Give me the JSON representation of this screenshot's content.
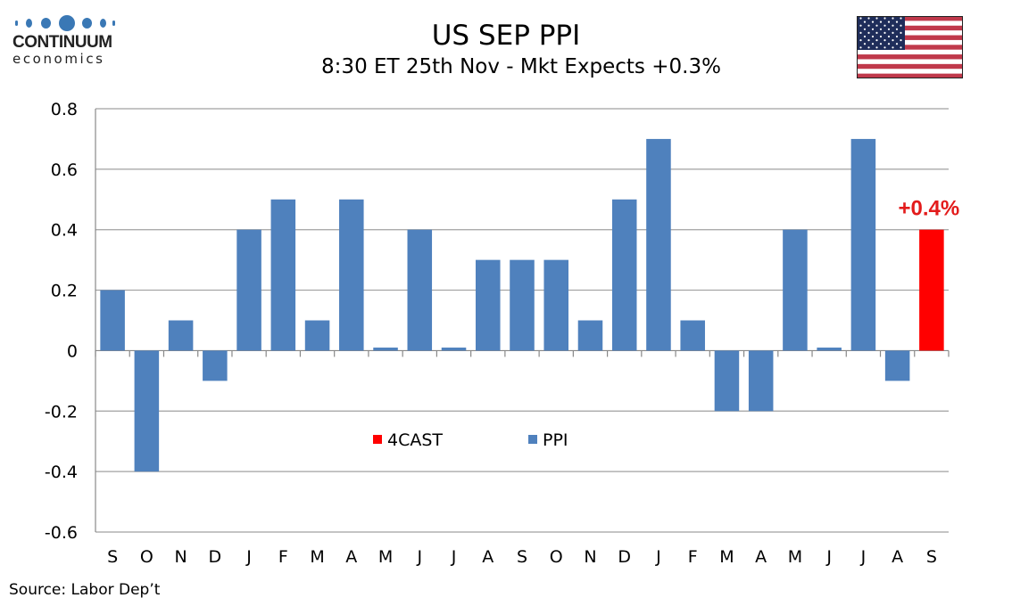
{
  "logo": {
    "name": "CONTINUUM",
    "sub": "economics"
  },
  "header": {
    "title": "US SEP PPI",
    "subtitle": "8:30 ET 25th Nov - Mkt Expects +0.3%"
  },
  "flag_icon": "us-flag-icon",
  "source": "Source: Labor Dep’t",
  "colors": {
    "ppi": "#4f81bd",
    "forecast": "#ff0000",
    "annotation": "#e31b1b",
    "grid": "#a0a0a0"
  },
  "chart_data": {
    "type": "bar",
    "title": "US SEP PPI",
    "subtitle": "8:30 ET 25th Nov - Mkt Expects +0.3%",
    "xlabel": "",
    "ylabel": "",
    "ylim": [
      -0.6,
      0.8
    ],
    "yticks": [
      0.8,
      0.6,
      0.4,
      0.2,
      0,
      -0.2,
      -0.4,
      -0.6
    ],
    "ytick_labels": [
      "0.8",
      "0.6",
      "0.4",
      "0.2",
      "0",
      "-0.2",
      "-0.4",
      "-0.6"
    ],
    "grid": true,
    "legend_position": "center",
    "categories": [
      "S",
      "O",
      "N",
      "D",
      "J",
      "F",
      "M",
      "A",
      "M",
      "J",
      "J",
      "A",
      "S",
      "O",
      "N",
      "D",
      "J",
      "F",
      "M",
      "A",
      "M",
      "J",
      "J",
      "A",
      "S"
    ],
    "series": [
      {
        "name": "PPI",
        "color": "#4f81bd",
        "values": [
          0.2,
          -0.4,
          0.1,
          -0.1,
          0.4,
          0.5,
          0.1,
          0.5,
          0.01,
          0.4,
          0.01,
          0.3,
          0.3,
          0.3,
          0.1,
          0.5,
          0.7,
          0.1,
          -0.2,
          -0.2,
          0.4,
          0.01,
          0.7,
          -0.1,
          null
        ]
      },
      {
        "name": "4CAST",
        "color": "#ff0000",
        "values": [
          null,
          null,
          null,
          null,
          null,
          null,
          null,
          null,
          null,
          null,
          null,
          null,
          null,
          null,
          null,
          null,
          null,
          null,
          null,
          null,
          null,
          null,
          null,
          null,
          0.4
        ]
      }
    ],
    "legend": [
      {
        "name": "4CAST",
        "color": "#ff0000"
      },
      {
        "name": "PPI",
        "color": "#4f81bd"
      }
    ],
    "annotations": [
      {
        "text": "+0.4%",
        "category_index": 24,
        "value": 0.4,
        "color": "#e31b1b"
      }
    ]
  }
}
